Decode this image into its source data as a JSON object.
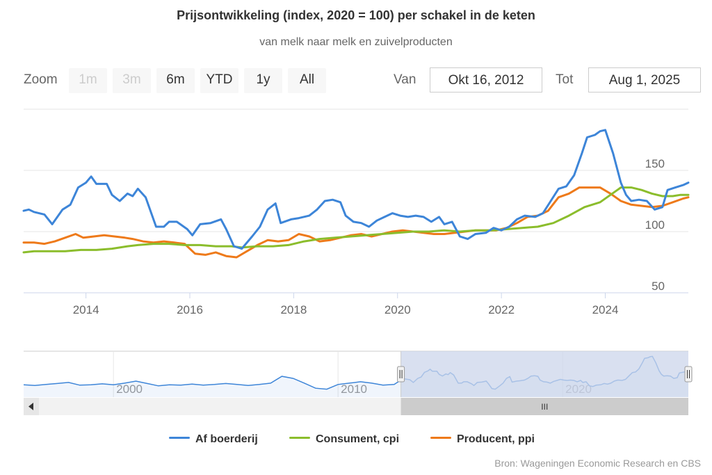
{
  "header": {
    "title": "Prijsontwikkeling (index, 2020 = 100) per schakel in de keten",
    "subtitle": "van melk naar melk en zuivelproducten"
  },
  "range_selector": {
    "zoom_label": "Zoom",
    "buttons": [
      {
        "label": "1m",
        "enabled": false
      },
      {
        "label": "3m",
        "enabled": false
      },
      {
        "label": "6m",
        "enabled": true
      },
      {
        "label": "YTD",
        "enabled": true
      },
      {
        "label": "1y",
        "enabled": true
      },
      {
        "label": "All",
        "enabled": true
      }
    ],
    "from_label": "Van",
    "from_value": "Okt 16, 2012",
    "to_label": "Tot",
    "to_value": "Aug 1, 2025"
  },
  "colors": {
    "af_boerderij": "#3d85d8",
    "consument": "#8bbd2c",
    "producent": "#ee7a1a",
    "navigator_mask": "#ccd6eb"
  },
  "chart_data": {
    "type": "line",
    "title": "Prijsontwikkeling (index, 2020 = 100) per schakel in de keten",
    "subtitle": "van melk naar melk en zuivelproducten",
    "xlim": [
      2012.8,
      2025.6
    ],
    "ylim": [
      50,
      200
    ],
    "y_ticks": [
      50,
      100,
      150
    ],
    "x_ticks": [
      "2014",
      "2016",
      "2018",
      "2020",
      "2022",
      "2024"
    ],
    "x_tick_values": [
      2014,
      2016,
      2018,
      2020,
      2022,
      2024
    ],
    "navigator": {
      "x_range": [
        1996,
        2025.6
      ],
      "selected_range": [
        2012.8,
        2025.6
      ],
      "x_ticks": [
        "2000",
        "2010",
        "2020"
      ],
      "x_tick_values": [
        2000,
        2010,
        2020
      ],
      "scrollbar_label": "III",
      "series": [
        [
          1996,
          99
        ],
        [
          1996.5,
          97
        ],
        [
          1997,
          100
        ],
        [
          1997.5,
          103
        ],
        [
          1998,
          106
        ],
        [
          1998.5,
          98
        ],
        [
          1999,
          99
        ],
        [
          1999.5,
          102
        ],
        [
          2000,
          99
        ],
        [
          2000.5,
          104
        ],
        [
          2001,
          110
        ],
        [
          2001.5,
          103
        ],
        [
          2002,
          96
        ],
        [
          2002.5,
          99
        ],
        [
          2003,
          98
        ],
        [
          2003.5,
          101
        ],
        [
          2004,
          98
        ],
        [
          2004.5,
          100
        ],
        [
          2005,
          103
        ],
        [
          2005.5,
          100
        ],
        [
          2006,
          97
        ],
        [
          2006.5,
          100
        ],
        [
          2007,
          104
        ],
        [
          2007.5,
          124
        ],
        [
          2008,
          118
        ],
        [
          2008.5,
          104
        ],
        [
          2009,
          89
        ],
        [
          2009.5,
          86
        ],
        [
          2010,
          100
        ],
        [
          2010.5,
          104
        ],
        [
          2011,
          108
        ],
        [
          2011.5,
          104
        ],
        [
          2012,
          98
        ],
        [
          2012.5,
          100
        ],
        [
          2012.8,
          113
        ]
      ]
    },
    "series": [
      {
        "name": "Af boerderij",
        "points": [
          [
            2012.8,
            117
          ],
          [
            2012.9,
            118
          ],
          [
            2013.0,
            116
          ],
          [
            2013.2,
            114
          ],
          [
            2013.35,
            106
          ],
          [
            2013.55,
            118
          ],
          [
            2013.7,
            122
          ],
          [
            2013.85,
            136
          ],
          [
            2014.0,
            140
          ],
          [
            2014.1,
            145
          ],
          [
            2014.2,
            139
          ],
          [
            2014.4,
            139
          ],
          [
            2014.5,
            130
          ],
          [
            2014.65,
            125
          ],
          [
            2014.8,
            131
          ],
          [
            2014.9,
            129
          ],
          [
            2015.0,
            135
          ],
          [
            2015.15,
            128
          ],
          [
            2015.35,
            104
          ],
          [
            2015.5,
            104
          ],
          [
            2015.6,
            108
          ],
          [
            2015.75,
            108
          ],
          [
            2015.95,
            102
          ],
          [
            2016.05,
            97
          ],
          [
            2016.2,
            106
          ],
          [
            2016.4,
            107
          ],
          [
            2016.6,
            110
          ],
          [
            2016.7,
            102
          ],
          [
            2016.85,
            88
          ],
          [
            2017.0,
            86
          ],
          [
            2017.2,
            96
          ],
          [
            2017.35,
            104
          ],
          [
            2017.5,
            118
          ],
          [
            2017.65,
            123
          ],
          [
            2017.75,
            107
          ],
          [
            2017.95,
            110
          ],
          [
            2018.1,
            111
          ],
          [
            2018.3,
            113
          ],
          [
            2018.45,
            118
          ],
          [
            2018.6,
            125
          ],
          [
            2018.75,
            126
          ],
          [
            2018.9,
            124
          ],
          [
            2019.0,
            113
          ],
          [
            2019.15,
            108
          ],
          [
            2019.3,
            107
          ],
          [
            2019.45,
            104
          ],
          [
            2019.6,
            109
          ],
          [
            2019.75,
            112
          ],
          [
            2019.9,
            115
          ],
          [
            2020.05,
            113
          ],
          [
            2020.2,
            112
          ],
          [
            2020.35,
            113
          ],
          [
            2020.5,
            112
          ],
          [
            2020.65,
            108
          ],
          [
            2020.8,
            112
          ],
          [
            2020.9,
            106
          ],
          [
            2021.05,
            108
          ],
          [
            2021.2,
            96
          ],
          [
            2021.35,
            94
          ],
          [
            2021.5,
            98
          ],
          [
            2021.7,
            99
          ],
          [
            2021.85,
            103
          ],
          [
            2022.0,
            101
          ],
          [
            2022.15,
            104
          ],
          [
            2022.3,
            110
          ],
          [
            2022.45,
            113
          ],
          [
            2022.65,
            112
          ],
          [
            2022.8,
            115
          ],
          [
            2022.95,
            125
          ],
          [
            2023.1,
            135
          ],
          [
            2023.25,
            137
          ],
          [
            2023.4,
            146
          ],
          [
            2023.55,
            164
          ],
          [
            2023.65,
            177
          ],
          [
            2023.8,
            179
          ],
          [
            2023.9,
            182
          ],
          [
            2024.0,
            183
          ],
          [
            2024.15,
            164
          ],
          [
            2024.3,
            140
          ],
          [
            2024.4,
            130
          ],
          [
            2024.5,
            125
          ],
          [
            2024.65,
            126
          ],
          [
            2024.8,
            125
          ],
          [
            2024.95,
            118
          ],
          [
            2025.1,
            120
          ],
          [
            2025.2,
            134
          ],
          [
            2025.35,
            136
          ],
          [
            2025.5,
            138
          ],
          [
            2025.6,
            140
          ]
        ]
      },
      {
        "name": "Consument, cpi",
        "points": [
          [
            2012.8,
            83
          ],
          [
            2013.0,
            84
          ],
          [
            2013.3,
            84
          ],
          [
            2013.6,
            84
          ],
          [
            2013.9,
            85
          ],
          [
            2014.2,
            85
          ],
          [
            2014.5,
            86
          ],
          [
            2014.8,
            88
          ],
          [
            2015.0,
            89
          ],
          [
            2015.3,
            90
          ],
          [
            2015.6,
            90
          ],
          [
            2015.9,
            89
          ],
          [
            2016.2,
            89
          ],
          [
            2016.5,
            88
          ],
          [
            2016.8,
            88
          ],
          [
            2017.0,
            87
          ],
          [
            2017.3,
            88
          ],
          [
            2017.6,
            88
          ],
          [
            2017.9,
            89
          ],
          [
            2018.2,
            92
          ],
          [
            2018.5,
            94
          ],
          [
            2018.8,
            95
          ],
          [
            2019.1,
            96
          ],
          [
            2019.4,
            97
          ],
          [
            2019.7,
            98
          ],
          [
            2020.0,
            99
          ],
          [
            2020.3,
            100
          ],
          [
            2020.6,
            100
          ],
          [
            2020.9,
            101
          ],
          [
            2021.2,
            100
          ],
          [
            2021.5,
            101
          ],
          [
            2021.8,
            101
          ],
          [
            2022.1,
            102
          ],
          [
            2022.4,
            103
          ],
          [
            2022.7,
            104
          ],
          [
            2023.0,
            107
          ],
          [
            2023.3,
            113
          ],
          [
            2023.6,
            120
          ],
          [
            2023.9,
            124
          ],
          [
            2024.1,
            130
          ],
          [
            2024.3,
            136
          ],
          [
            2024.5,
            136
          ],
          [
            2024.7,
            134
          ],
          [
            2024.9,
            131
          ],
          [
            2025.1,
            129
          ],
          [
            2025.3,
            129
          ],
          [
            2025.45,
            130
          ],
          [
            2025.6,
            130
          ]
        ]
      },
      {
        "name": "Producent, ppi",
        "points": [
          [
            2012.8,
            91
          ],
          [
            2013.0,
            91
          ],
          [
            2013.2,
            90
          ],
          [
            2013.4,
            92
          ],
          [
            2013.6,
            95
          ],
          [
            2013.8,
            98
          ],
          [
            2013.95,
            95
          ],
          [
            2014.15,
            96
          ],
          [
            2014.35,
            97
          ],
          [
            2014.55,
            96
          ],
          [
            2014.75,
            95
          ],
          [
            2014.9,
            94
          ],
          [
            2015.1,
            92
          ],
          [
            2015.3,
            91
          ],
          [
            2015.5,
            92
          ],
          [
            2015.7,
            91
          ],
          [
            2015.9,
            90
          ],
          [
            2016.1,
            82
          ],
          [
            2016.3,
            81
          ],
          [
            2016.5,
            83
          ],
          [
            2016.7,
            80
          ],
          [
            2016.9,
            79
          ],
          [
            2017.1,
            84
          ],
          [
            2017.3,
            89
          ],
          [
            2017.5,
            93
          ],
          [
            2017.7,
            92
          ],
          [
            2017.9,
            93
          ],
          [
            2018.1,
            98
          ],
          [
            2018.3,
            96
          ],
          [
            2018.5,
            92
          ],
          [
            2018.7,
            93
          ],
          [
            2018.9,
            95
          ],
          [
            2019.1,
            97
          ],
          [
            2019.3,
            98
          ],
          [
            2019.5,
            96
          ],
          [
            2019.7,
            98
          ],
          [
            2019.9,
            100
          ],
          [
            2020.1,
            101
          ],
          [
            2020.3,
            100
          ],
          [
            2020.5,
            99
          ],
          [
            2020.7,
            98
          ],
          [
            2020.9,
            98
          ],
          [
            2021.1,
            99
          ],
          [
            2021.3,
            100
          ],
          [
            2021.5,
            101
          ],
          [
            2021.7,
            101
          ],
          [
            2021.9,
            101
          ],
          [
            2022.1,
            103
          ],
          [
            2022.3,
            107
          ],
          [
            2022.5,
            112
          ],
          [
            2022.7,
            113
          ],
          [
            2022.9,
            117
          ],
          [
            2023.1,
            128
          ],
          [
            2023.3,
            131
          ],
          [
            2023.5,
            136
          ],
          [
            2023.7,
            136
          ],
          [
            2023.9,
            136
          ],
          [
            2024.1,
            131
          ],
          [
            2024.3,
            125
          ],
          [
            2024.5,
            122
          ],
          [
            2024.7,
            121
          ],
          [
            2024.9,
            120
          ],
          [
            2025.1,
            121
          ],
          [
            2025.3,
            124
          ],
          [
            2025.5,
            127
          ],
          [
            2025.6,
            128
          ]
        ]
      }
    ],
    "legend": [
      "Af boerderij",
      "Consument, cpi",
      "Producent, ppi"
    ],
    "legend_position": "bottom",
    "credits": "Bron: Wageningen Economic Research en CBS"
  }
}
